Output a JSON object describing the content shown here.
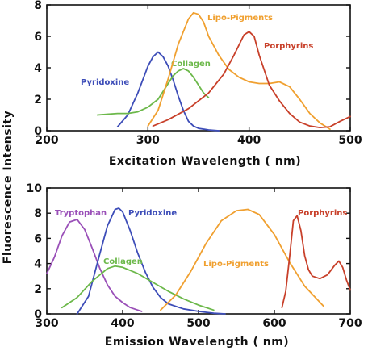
{
  "figure": {
    "shared_ylabel": "Fluorescence   Intensity"
  },
  "chart_data": [
    {
      "type": "line",
      "title": "",
      "xlabel": "Excitation  Wavelength ( nm)",
      "ylabel": "",
      "xlim": [
        200,
        500
      ],
      "ylim": [
        0,
        8
      ],
      "xticks": [
        200,
        300,
        400,
        500
      ],
      "yticks": [
        0,
        2,
        4,
        6,
        8
      ],
      "grid": false,
      "legend": "none (curves labelled directly)",
      "series": [
        {
          "name": "Pyridoxine",
          "color": "#3d4db8",
          "x": [
            270,
            280,
            290,
            300,
            305,
            310,
            315,
            320,
            325,
            330,
            335,
            340,
            345,
            350,
            360,
            370
          ],
          "y": [
            0.25,
            1.0,
            2.4,
            4.1,
            4.7,
            5.0,
            4.7,
            4.1,
            3.2,
            2.2,
            1.3,
            0.6,
            0.3,
            0.15,
            0.05,
            0.0
          ]
        },
        {
          "name": "Collagen",
          "color": "#6cb84a",
          "x": [
            250,
            260,
            270,
            280,
            290,
            300,
            310,
            320,
            325,
            330,
            335,
            340,
            345,
            350,
            355,
            360
          ],
          "y": [
            1.0,
            1.05,
            1.1,
            1.1,
            1.2,
            1.5,
            2.0,
            3.0,
            3.5,
            3.8,
            3.95,
            3.8,
            3.4,
            2.9,
            2.4,
            2.1
          ]
        },
        {
          "name": "Lipo-Pigments",
          "color": "#f0a030",
          "x": [
            300,
            310,
            320,
            330,
            340,
            345,
            350,
            355,
            360,
            370,
            380,
            390,
            400,
            410,
            420,
            430,
            440,
            450,
            460,
            470,
            480
          ],
          "y": [
            0.3,
            1.3,
            3.3,
            5.5,
            7.1,
            7.5,
            7.4,
            6.9,
            6.0,
            4.8,
            3.9,
            3.4,
            3.1,
            3.0,
            3.0,
            3.1,
            2.8,
            2.0,
            1.1,
            0.5,
            0.1
          ]
        },
        {
          "name": "Porphyrins",
          "color": "#c8402a",
          "x": [
            305,
            320,
            340,
            360,
            375,
            385,
            395,
            400,
            405,
            410,
            420,
            430,
            440,
            450,
            460,
            470,
            480,
            490,
            500
          ],
          "y": [
            0.3,
            0.7,
            1.4,
            2.4,
            3.6,
            4.8,
            6.1,
            6.3,
            6.0,
            4.8,
            2.9,
            1.9,
            1.1,
            0.55,
            0.3,
            0.2,
            0.25,
            0.6,
            0.9
          ]
        }
      ]
    },
    {
      "type": "line",
      "title": "",
      "xlabel": "Emission  Wavelength ( nm)",
      "ylabel": "",
      "xlim": [
        300,
        700
      ],
      "ylim": [
        0,
        10
      ],
      "xticks": [
        300,
        400,
        500,
        600,
        700
      ],
      "yticks": [
        0,
        2,
        4,
        6,
        8,
        10
      ],
      "grid": false,
      "legend": "none (curves labelled directly)",
      "series": [
        {
          "name": "Tryptophan",
          "color": "#9a50b8",
          "x": [
            300,
            310,
            320,
            330,
            340,
            350,
            360,
            370,
            380,
            390,
            400,
            410,
            420,
            425
          ],
          "y": [
            3.2,
            4.5,
            6.2,
            7.3,
            7.5,
            6.7,
            5.2,
            3.6,
            2.3,
            1.4,
            0.9,
            0.5,
            0.3,
            0.2
          ]
        },
        {
          "name": "Pyridoxine",
          "color": "#3d4db8",
          "x": [
            340,
            355,
            370,
            380,
            390,
            395,
            400,
            410,
            420,
            430,
            440,
            450,
            460,
            480,
            500,
            520,
            535
          ],
          "y": [
            0.0,
            1.4,
            4.8,
            7.0,
            8.3,
            8.4,
            8.1,
            6.6,
            4.8,
            3.3,
            2.1,
            1.3,
            0.8,
            0.4,
            0.2,
            0.05,
            0.0
          ]
        },
        {
          "name": "Collagen",
          "color": "#6cb84a",
          "x": [
            320,
            340,
            360,
            380,
            390,
            400,
            420,
            440,
            460,
            480,
            500,
            520
          ],
          "y": [
            0.5,
            1.3,
            2.6,
            3.6,
            3.8,
            3.7,
            3.2,
            2.5,
            1.8,
            1.2,
            0.7,
            0.3
          ]
        },
        {
          "name": "Lipo-Pigments",
          "color": "#f0a030",
          "x": [
            450,
            470,
            490,
            510,
            530,
            550,
            565,
            580,
            600,
            620,
            640,
            665
          ],
          "y": [
            0.3,
            1.5,
            3.4,
            5.6,
            7.4,
            8.2,
            8.3,
            7.9,
            6.3,
            4.1,
            2.2,
            0.6
          ]
        },
        {
          "name": "Porphyrins",
          "color": "#c8402a",
          "x": [
            610,
            615,
            620,
            625,
            630,
            635,
            640,
            645,
            650,
            660,
            670,
            680,
            685,
            690,
            695,
            700
          ],
          "y": [
            0.5,
            1.8,
            4.5,
            7.4,
            7.8,
            6.6,
            4.6,
            3.5,
            3.0,
            2.8,
            3.1,
            3.9,
            4.2,
            3.7,
            2.7,
            1.9
          ]
        }
      ]
    }
  ]
}
